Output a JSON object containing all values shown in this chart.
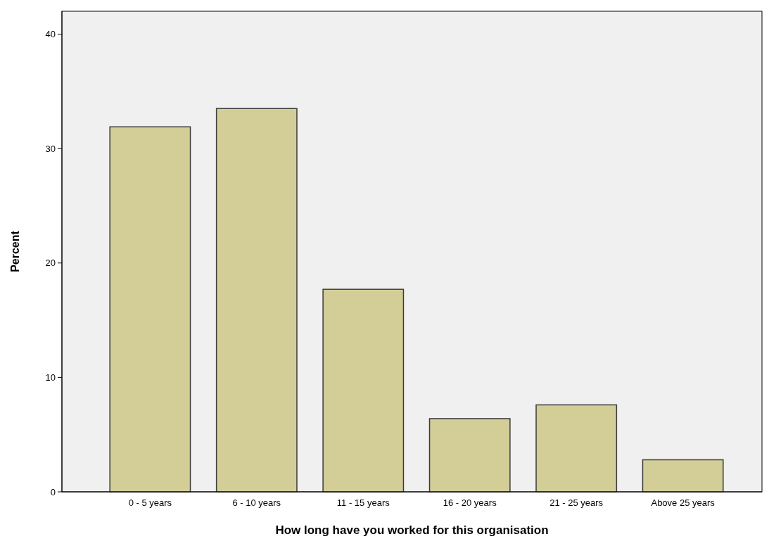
{
  "chart_data": {
    "type": "bar",
    "xlabel": "How long have you worked for this organisation",
    "ylabel": "Percent",
    "categories": [
      "0 - 5 years",
      "6 - 10 years",
      "11 - 15 years",
      "16 - 20 years",
      "21 - 25 years",
      "Above 25 years"
    ],
    "values": [
      31.9,
      33.5,
      17.7,
      6.4,
      7.6,
      2.8
    ],
    "color": "#d3ce97",
    "ylim": [
      0,
      42
    ],
    "yticks": [
      0,
      10,
      20,
      30,
      40
    ],
    "grid": false
  }
}
